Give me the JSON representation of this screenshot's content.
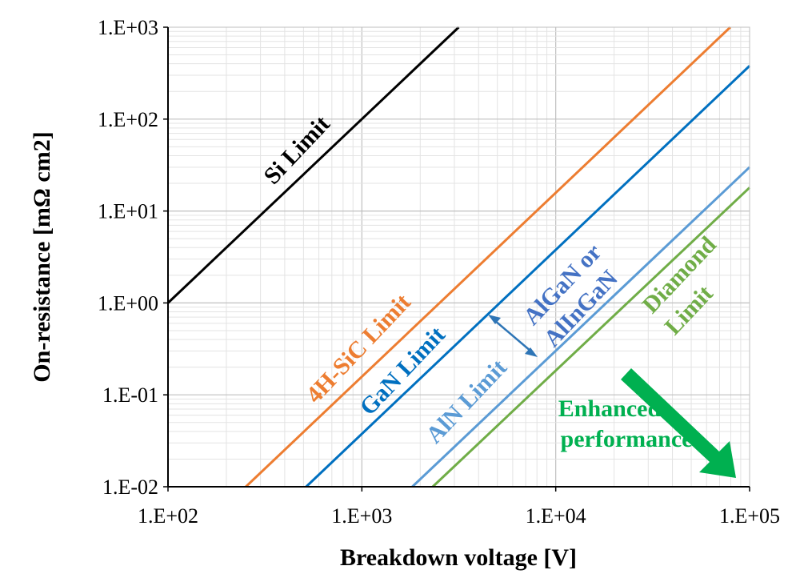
{
  "chart_data": {
    "type": "line",
    "xlabel": "Breakdown voltage [V]",
    "ylabel": "On-resistance [mΩ cm2]",
    "x_scale": "log",
    "y_scale": "log",
    "xlim": [
      100,
      100000
    ],
    "ylim": [
      0.01,
      1000
    ],
    "x_ticks": [
      "1.E+02",
      "1.E+03",
      "1.E+04",
      "1.E+05"
    ],
    "y_ticks": [
      "1.E-02",
      "1.E-01",
      "1.E+00",
      "1.E+01",
      "1.E+02",
      "1.E+03"
    ],
    "grid": "major and minor",
    "series": [
      {
        "name": "Si Limit",
        "color": "#000000",
        "points": [
          [
            100,
            1.0
          ],
          [
            3160,
            1000
          ]
        ]
      },
      {
        "name": "4H-SiC Limit",
        "color": "#ED7D31",
        "points": [
          [
            252,
            0.01
          ],
          [
            79500,
            1000
          ]
        ]
      },
      {
        "name": "GaN Limit",
        "color": "#0070C0",
        "points": [
          [
            516,
            0.01
          ],
          [
            100000,
            380
          ]
        ]
      },
      {
        "name": "AlN Limit",
        "color": "#5B9BD5",
        "points": [
          [
            1820,
            0.01
          ],
          [
            100000,
            30
          ]
        ]
      },
      {
        "name": "Diamond Limit",
        "color": "#70AD47",
        "points": [
          [
            2320,
            0.01
          ],
          [
            100000,
            18
          ]
        ]
      }
    ],
    "annotations": {
      "si_label": "Si Limit",
      "sic_label": "4H-SiC Limit",
      "gan_label": "GaN Limit",
      "aln_label": "AlN Limit",
      "algan_line1": "AlGaN or",
      "algan_line2": "AlInGaN",
      "diamond_line1": "Diamond",
      "diamond_line2": "Limit",
      "enhanced_line1": "Enhanced",
      "enhanced_line2": "performance",
      "enhanced_color": "#00B050"
    }
  }
}
